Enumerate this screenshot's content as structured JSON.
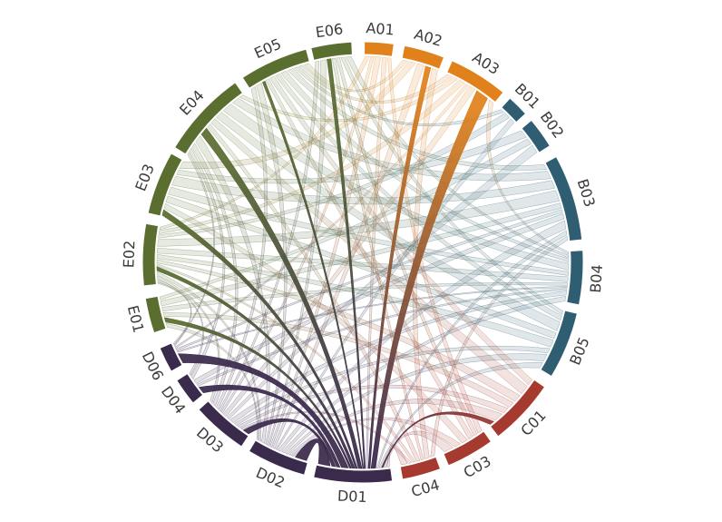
{
  "chart_data": {
    "type": "chord",
    "title": "",
    "groups": [
      {
        "id": "A",
        "color": "#e0811c"
      },
      {
        "id": "B",
        "color": "#2f5e73"
      },
      {
        "id": "C",
        "color": "#a63a2e"
      },
      {
        "id": "D",
        "color": "#3a2a4c"
      },
      {
        "id": "E",
        "color": "#5a6e2f"
      }
    ],
    "segments": [
      {
        "id": "A01",
        "group": "A",
        "start": 0.5,
        "end": 8
      },
      {
        "id": "A02",
        "group": "A",
        "start": 11,
        "end": 21.5
      },
      {
        "id": "A03",
        "group": "A",
        "start": 24,
        "end": 39.5
      },
      {
        "id": "B01",
        "group": "B",
        "start": 42,
        "end": 47.5
      },
      {
        "id": "B02",
        "group": "B",
        "start": 50,
        "end": 58
      },
      {
        "id": "B03",
        "group": "B",
        "start": 61.5,
        "end": 84
      },
      {
        "id": "B04",
        "group": "B",
        "start": 87,
        "end": 101
      },
      {
        "id": "B05",
        "group": "B",
        "start": 103.5,
        "end": 121
      },
      {
        "id": "C01",
        "group": "C",
        "start": 124.5,
        "end": 142
      },
      {
        "id": "C03",
        "group": "C",
        "start": 144.5,
        "end": 157
      },
      {
        "id": "C04",
        "group": "C",
        "start": 159.5,
        "end": 169.5
      },
      {
        "id": "D01",
        "group": "D",
        "start": 172.4,
        "end": 192.8
      },
      {
        "id": "D02",
        "group": "D",
        "start": 195.5,
        "end": 211
      },
      {
        "id": "D03",
        "group": "D",
        "start": 213.5,
        "end": 228
      },
      {
        "id": "D04",
        "group": "D",
        "start": 230.5,
        "end": 237.5
      },
      {
        "id": "D06",
        "group": "D",
        "start": 240.5,
        "end": 247
      },
      {
        "id": "E01",
        "group": "E",
        "start": 251.5,
        "end": 260.5
      },
      {
        "id": "E02",
        "group": "E",
        "start": 264,
        "end": 280
      },
      {
        "id": "E03",
        "group": "E",
        "start": 283,
        "end": 299.5
      },
      {
        "id": "E04",
        "group": "E",
        "start": 301.5,
        "end": 324.5
      },
      {
        "id": "E05",
        "group": "E",
        "start": 327,
        "end": 345
      },
      {
        "id": "E06",
        "group": "E",
        "start": 346.5,
        "end": 357
      }
    ],
    "links_format": [
      "source",
      "target",
      "value",
      "strong"
    ],
    "links": [
      [
        "A01",
        "D02",
        1,
        0
      ],
      [
        "A01",
        "E02",
        0.8,
        0
      ],
      [
        "A01",
        "C03",
        0.6,
        0
      ],
      [
        "A01",
        "D03",
        0.6,
        0
      ],
      [
        "A01",
        "D01",
        0.8,
        0
      ],
      [
        "A02",
        "E03",
        1.2,
        0
      ],
      [
        "A02",
        "D02",
        1.2,
        0
      ],
      [
        "A02",
        "C04",
        1,
        0
      ],
      [
        "A02",
        "E05",
        0.8,
        0
      ],
      [
        "A03",
        "E02",
        1,
        0
      ],
      [
        "A03",
        "D03",
        1,
        0
      ],
      [
        "A03",
        "E04",
        0.8,
        0
      ],
      [
        "A03",
        "B04",
        0.8,
        0
      ],
      [
        "A03",
        "D06",
        0.5,
        0
      ],
      [
        "A03",
        "E05",
        0.8,
        0
      ],
      [
        "B01",
        "E02",
        1,
        0
      ],
      [
        "B01",
        "D02",
        0.8,
        0
      ],
      [
        "B01",
        "E05",
        0.6,
        0
      ],
      [
        "B02",
        "E03",
        0.8,
        0
      ],
      [
        "B02",
        "D03",
        0.8,
        0
      ],
      [
        "B02",
        "E01",
        0.6,
        0
      ],
      [
        "B03",
        "E02",
        2,
        0
      ],
      [
        "B03",
        "E03",
        1.5,
        0
      ],
      [
        "B03",
        "E04",
        1.5,
        0
      ],
      [
        "B03",
        "D02",
        1.5,
        0
      ],
      [
        "B03",
        "E05",
        1,
        0
      ],
      [
        "B03",
        "D04",
        1,
        0
      ],
      [
        "B03",
        "E01",
        1,
        0
      ],
      [
        "B03",
        "C04",
        0.8,
        0
      ],
      [
        "B03",
        "D06",
        0.6,
        0
      ],
      [
        "B03",
        "D01",
        0.8,
        0
      ],
      [
        "B04",
        "E04",
        2,
        0
      ],
      [
        "B04",
        "E02",
        1.5,
        0
      ],
      [
        "B04",
        "E03",
        1.2,
        0
      ],
      [
        "B04",
        "D02",
        1.5,
        0
      ],
      [
        "B04",
        "D03",
        1.2,
        0
      ],
      [
        "B04",
        "E05",
        1,
        0
      ],
      [
        "B04",
        "E06",
        0.8,
        0
      ],
      [
        "B04",
        "E01",
        0.8,
        0
      ],
      [
        "B04",
        "D06",
        0.5,
        0
      ],
      [
        "B04",
        "D04",
        0.6,
        0
      ],
      [
        "B05",
        "E04",
        1.5,
        0
      ],
      [
        "B05",
        "E02",
        1.2,
        0
      ],
      [
        "B05",
        "D02",
        1.2,
        0
      ],
      [
        "B05",
        "E03",
        1,
        0
      ],
      [
        "B05",
        "D03",
        0.8,
        0
      ],
      [
        "B05",
        "E05",
        0.8,
        0
      ],
      [
        "B05",
        "D01",
        1,
        0
      ],
      [
        "B05",
        "E06",
        0.6,
        0
      ],
      [
        "C01",
        "E04",
        1.2,
        0
      ],
      [
        "C01",
        "D02",
        1.2,
        0
      ],
      [
        "C01",
        "E02",
        1,
        0
      ],
      [
        "C01",
        "E01",
        0.8,
        0
      ],
      [
        "C01",
        "D03",
        0.8,
        0
      ],
      [
        "C01",
        "E05",
        0.8,
        0
      ],
      [
        "C03",
        "D01",
        1.2,
        0
      ],
      [
        "C03",
        "E03",
        0.8,
        0
      ],
      [
        "C03",
        "D02",
        0.8,
        0
      ],
      [
        "C03",
        "E05",
        0.6,
        0
      ],
      [
        "C03",
        "E06",
        0.5,
        0
      ],
      [
        "C04",
        "D01",
        1.2,
        0
      ],
      [
        "C04",
        "E04",
        0.8,
        0
      ],
      [
        "C04",
        "D03",
        0.6,
        0
      ],
      [
        "C04",
        "E02",
        0.6,
        0
      ],
      [
        "C04",
        "E06",
        0.5,
        0
      ],
      [
        "D02",
        "E04",
        1.5,
        0
      ],
      [
        "D02",
        "E05",
        1,
        0
      ],
      [
        "D02",
        "E06",
        0.8,
        0
      ],
      [
        "D02",
        "E01",
        0.8,
        0
      ],
      [
        "D02",
        "E02",
        1,
        0
      ],
      [
        "D03",
        "E04",
        1,
        0
      ],
      [
        "D03",
        "E05",
        0.8,
        0
      ],
      [
        "D03",
        "E06",
        0.6,
        0
      ],
      [
        "D03",
        "E02",
        0.8,
        0
      ],
      [
        "D04",
        "E04",
        0.8,
        0
      ],
      [
        "D04",
        "E02",
        0.6,
        0
      ],
      [
        "D06",
        "E04",
        0.5,
        0
      ],
      [
        "D06",
        "E02",
        0.5,
        0
      ],
      [
        "A02",
        "D01",
        0.9,
        1
      ],
      [
        "A03",
        "D01",
        2,
        1
      ],
      [
        "C01",
        "D01",
        0.6,
        1
      ],
      [
        "D02",
        "D01",
        5,
        1
      ],
      [
        "D03",
        "D01",
        1.6,
        1
      ],
      [
        "D04",
        "D01",
        1.6,
        1
      ],
      [
        "D06",
        "D01",
        3,
        1
      ],
      [
        "E01",
        "D01",
        0.9,
        1
      ],
      [
        "E02",
        "D01",
        1.2,
        1
      ],
      [
        "E03",
        "D01",
        0.9,
        1
      ],
      [
        "E04",
        "D01",
        1.6,
        1
      ],
      [
        "E05",
        "D01",
        0.5,
        1
      ],
      [
        "E06",
        "D01",
        0.6,
        1
      ]
    ],
    "style": {
      "background": "#ffffff",
      "label_color": "#3b3b3b",
      "label_font_px": 16,
      "arc_thickness_px": 13,
      "pale_fill_opacity": 0.15,
      "pale_edge_opacity": 0.45,
      "strong_fill_opacity": 0.93,
      "strong_edge_opacity": 0.95
    },
    "legend": "none",
    "axes": "none"
  }
}
